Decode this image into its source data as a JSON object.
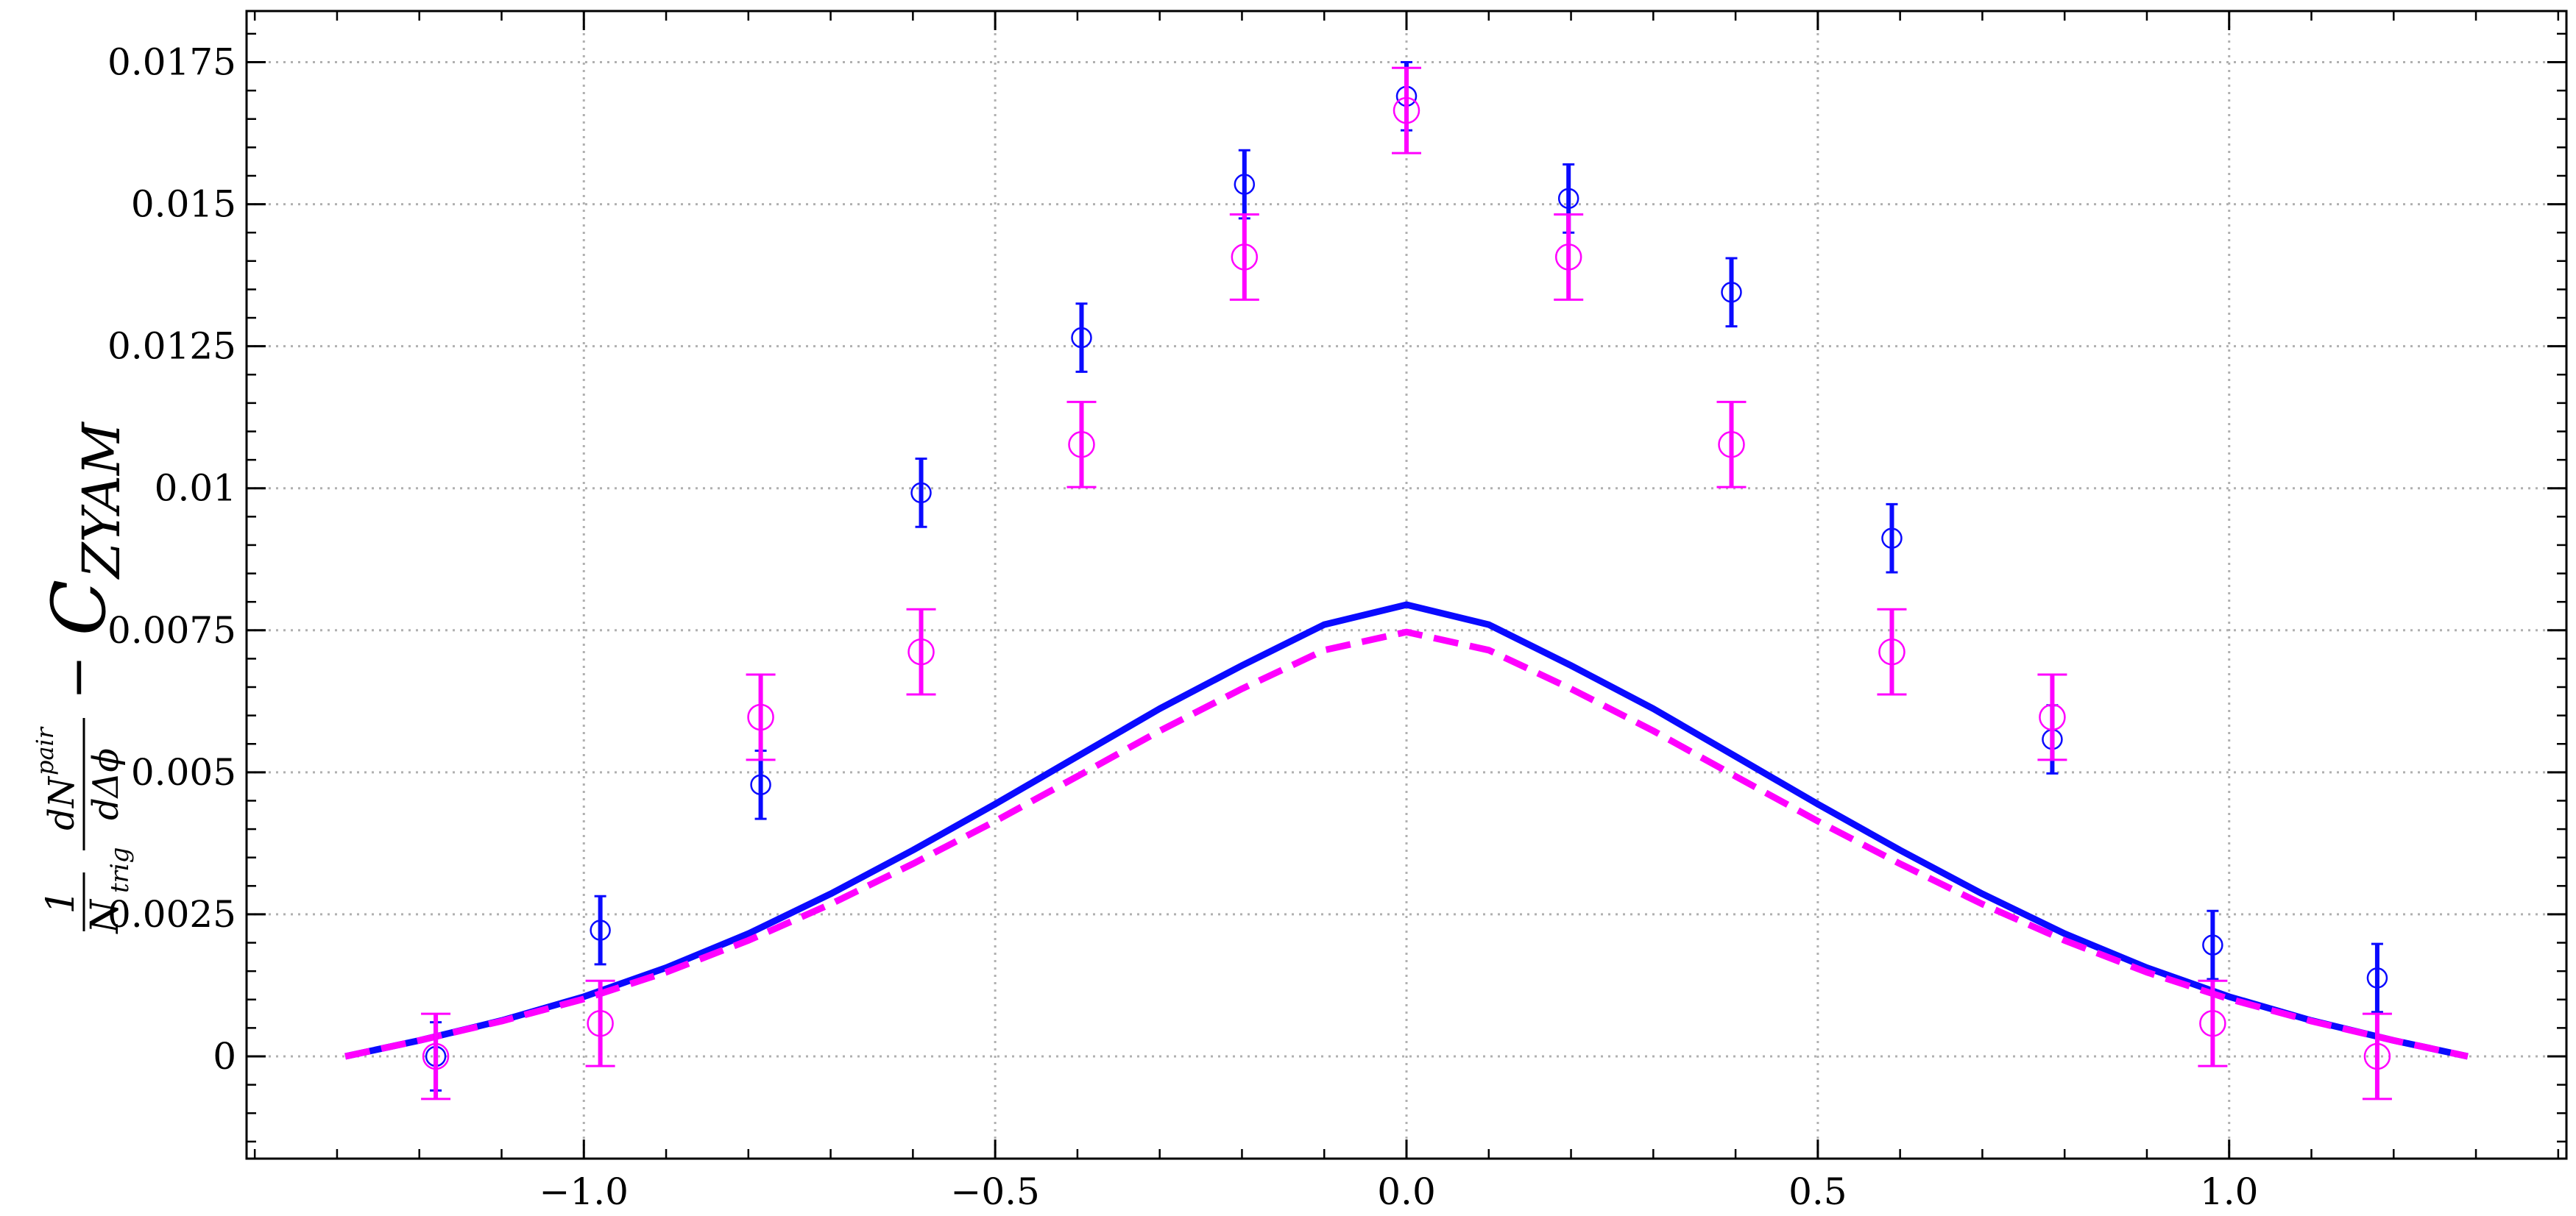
{
  "chart_data": {
    "type": "scatter",
    "title": "",
    "xlabel": "",
    "ylabel": "1/N_trig dN^pair/dΔφ − C_ZYAM",
    "ylabel_parts": {
      "num1": "1",
      "den1": "N",
      "den1_sub": "trig",
      "num2": "dN",
      "num2_sup": "pair",
      "den2": "dΔϕ",
      "minus": "−",
      "c": "C",
      "c_sub": "ZYAM"
    },
    "xlim": [
      -1.41,
      1.41
    ],
    "ylim": [
      -0.0018,
      0.0184
    ],
    "grid": true,
    "x_ticks": [
      -1.0,
      -0.5,
      0.0,
      0.5,
      1.0
    ],
    "x_tick_labels": [
      "−1.0",
      "−0.5",
      "0.0",
      "0.5",
      "1.0"
    ],
    "y_ticks": [
      0,
      0.0025,
      0.005,
      0.0075,
      0.01,
      0.0125,
      0.015,
      0.0175
    ],
    "y_tick_labels": [
      "0",
      "0.0025",
      "0.005",
      "0.0075",
      "0.01",
      "0.0125",
      "0.015",
      "0.0175"
    ],
    "colors": {
      "blue": "#0a0aff",
      "magenta": "#ff00ff"
    },
    "series": [
      {
        "kind": "points",
        "color": "#0a0aff",
        "marker_size": "small",
        "x": [
          -1.18,
          -0.98,
          -0.785,
          -0.59,
          -0.395,
          -0.197,
          0.0,
          0.197,
          0.395,
          0.59,
          0.785,
          0.98,
          1.18
        ],
        "y": [
          0.0,
          0.00222,
          0.00478,
          0.00992,
          0.01265,
          0.01535,
          0.0169,
          0.0151,
          0.01345,
          0.00912,
          0.00558,
          0.00196,
          0.00138
        ],
        "err": [
          0.0006,
          0.0006,
          0.0006,
          0.0006,
          0.0006,
          0.0006,
          0.0006,
          0.0006,
          0.0006,
          0.0006,
          0.0006,
          0.0006,
          0.0006
        ]
      },
      {
        "kind": "points",
        "color": "#ff00ff",
        "marker_size": "large",
        "x": [
          -1.18,
          -0.98,
          -0.785,
          -0.59,
          -0.395,
          -0.197,
          0.0,
          0.197,
          0.395,
          0.59,
          0.785,
          0.98,
          1.18
        ],
        "y": [
          0.0,
          0.00058,
          0.00597,
          0.00712,
          0.01077,
          0.01407,
          0.01665,
          0.01407,
          0.01077,
          0.00712,
          0.00597,
          0.00058,
          0.0
        ],
        "err": [
          0.00075,
          0.00075,
          0.00075,
          0.00075,
          0.00075,
          0.00075,
          0.00075,
          0.00075,
          0.00075,
          0.00075,
          0.00075,
          0.00075,
          0.00075
        ]
      },
      {
        "kind": "curve",
        "style": "solid",
        "color": "#0a0aff",
        "x": [
          -1.29,
          -1.2,
          -1.1,
          -1.0,
          -0.9,
          -0.8,
          -0.7,
          -0.6,
          -0.5,
          -0.4,
          -0.3,
          -0.2,
          -0.1,
          0.0,
          0.1,
          0.2,
          0.3,
          0.4,
          0.5,
          0.6,
          0.7,
          0.8,
          0.9,
          1.0,
          1.1,
          1.2,
          1.29
        ],
        "y": [
          0.0,
          0.00028,
          0.00063,
          0.00105,
          0.00156,
          0.00216,
          0.00286,
          0.00363,
          0.00444,
          0.00528,
          0.00612,
          0.00688,
          0.0076,
          0.00795,
          0.0076,
          0.00688,
          0.00612,
          0.00528,
          0.00444,
          0.00363,
          0.00286,
          0.00216,
          0.00156,
          0.00105,
          0.00063,
          0.00028,
          0.0
        ]
      },
      {
        "kind": "curve",
        "style": "dashed",
        "color": "#ff00ff",
        "x": [
          -1.29,
          -1.2,
          -1.1,
          -1.0,
          -0.9,
          -0.8,
          -0.7,
          -0.6,
          -0.5,
          -0.4,
          -0.3,
          -0.2,
          -0.1,
          0.0,
          0.1,
          0.2,
          0.3,
          0.4,
          0.5,
          0.6,
          0.7,
          0.8,
          0.9,
          1.0,
          1.1,
          1.2,
          1.29
        ],
        "y": [
          0.0,
          0.00028,
          0.00062,
          0.00101,
          0.00148,
          0.00204,
          0.00268,
          0.00339,
          0.00414,
          0.00493,
          0.00573,
          0.00647,
          0.00715,
          0.00747,
          0.00715,
          0.00647,
          0.00573,
          0.00493,
          0.00414,
          0.00339,
          0.00268,
          0.00204,
          0.00148,
          0.00101,
          0.00062,
          0.00028,
          0.0
        ]
      }
    ]
  }
}
